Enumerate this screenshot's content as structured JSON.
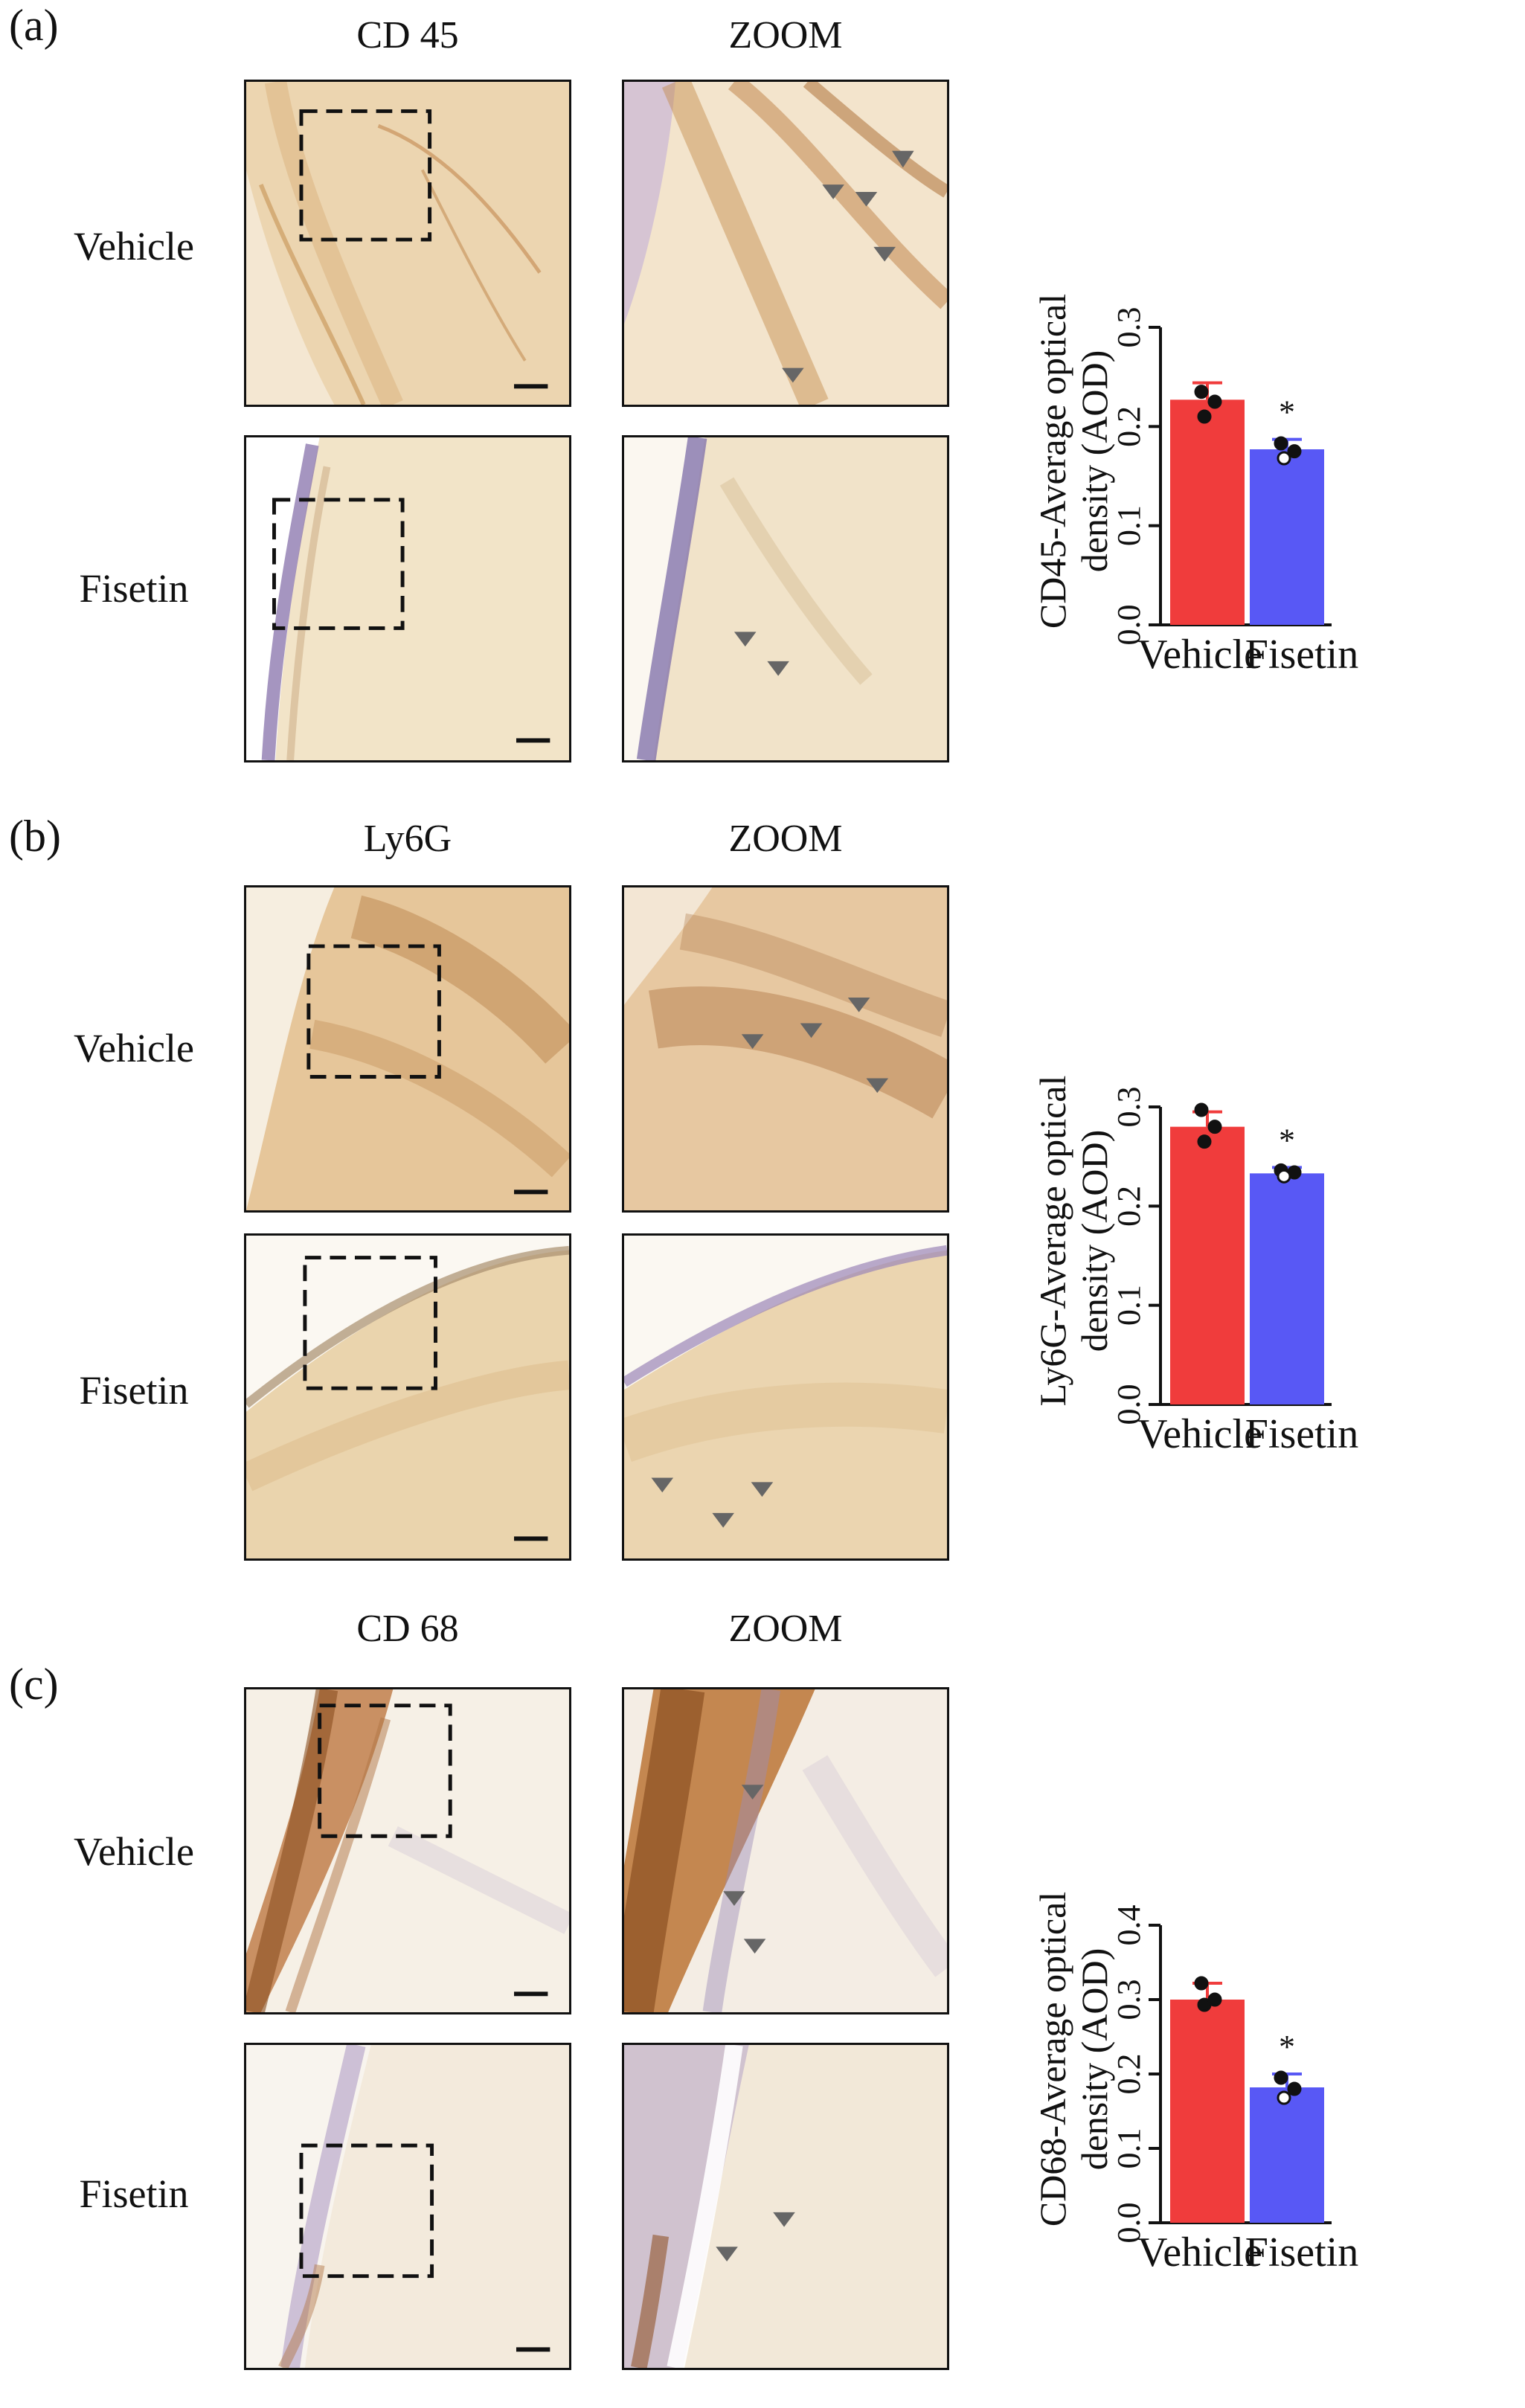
{
  "figure": {
    "panels": [
      {
        "label": "(a)",
        "stain_title": "CD 45",
        "zoom_title": "ZOOM",
        "rows": [
          "Vehicle",
          "Fisetin"
        ]
      },
      {
        "label": "(b)",
        "stain_title": "Ly6G",
        "zoom_title": "ZOOM",
        "rows": [
          "Vehicle",
          "Fisetin"
        ]
      },
      {
        "label": "(c)",
        "stain_title": "CD 68",
        "zoom_title": "ZOOM",
        "rows": [
          "Vehicle",
          "Fisetin"
        ]
      }
    ]
  },
  "colors": {
    "vehicle_bar": "#f03c3c",
    "fisetin_bar": "#5858f5",
    "tissue_light": "#f3e6cf",
    "tissue_dark": "#b07434",
    "nuclei": "#8a80b8"
  },
  "chart_data": [
    {
      "type": "bar",
      "title": "",
      "ylabel_line1": "CD45-Average optical",
      "ylabel_line2": "density (AOD)",
      "categories": [
        "Vehicle",
        "Fisetin"
      ],
      "values": [
        0.227,
        0.177
      ],
      "errors": [
        0.017,
        0.01
      ],
      "points": [
        [
          0.235,
          0.225,
          0.21
        ],
        [
          0.183,
          0.175,
          0.168
        ]
      ],
      "significance": [
        "",
        "*"
      ],
      "ylim": [
        0.0,
        0.3
      ],
      "yticks": [
        "0.0",
        "0.1",
        "0.2",
        "0.3"
      ]
    },
    {
      "type": "bar",
      "title": "",
      "ylabel_line1": "Ly6G-Average optical",
      "ylabel_line2": "density (AOD)",
      "categories": [
        "Vehicle",
        "Fisetin"
      ],
      "values": [
        0.28,
        0.233
      ],
      "errors": [
        0.015,
        0.006
      ],
      "points": [
        [
          0.297,
          0.28,
          0.265
        ],
        [
          0.236,
          0.234,
          0.23
        ]
      ],
      "significance": [
        "",
        "*"
      ],
      "ylim": [
        0.0,
        0.3
      ],
      "yticks": [
        "0.0",
        "0.1",
        "0.2",
        "0.3"
      ]
    },
    {
      "type": "bar",
      "title": "",
      "ylabel_line1": "CD68-Average optical",
      "ylabel_line2": "density (AOD)",
      "categories": [
        "Vehicle",
        "Fisetin"
      ],
      "values": [
        0.3,
        0.182
      ],
      "errors": [
        0.022,
        0.018
      ],
      "points": [
        [
          0.322,
          0.3,
          0.293
        ],
        [
          0.195,
          0.18,
          0.168
        ]
      ],
      "significance": [
        "",
        "*"
      ],
      "ylim": [
        0.0,
        0.4
      ],
      "yticks": [
        "0.0",
        "0.1",
        "0.2",
        "0.3",
        "0.4"
      ]
    }
  ]
}
